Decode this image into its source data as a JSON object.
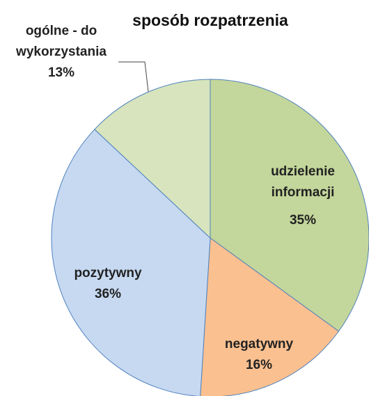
{
  "chart_data": {
    "type": "pie",
    "title": "sposób rozpatrzenia",
    "categories": [
      "udzielenie informacji",
      "negatywny",
      "pozytywny",
      "ogólne - do wykorzystania"
    ],
    "values": [
      35,
      16,
      36,
      13
    ],
    "value_labels": [
      "35%",
      "16%",
      "36%",
      "13%"
    ],
    "colors": [
      "#c3d69b",
      "#fac090",
      "#c6d9f1",
      "#d7e4bd"
    ]
  }
}
